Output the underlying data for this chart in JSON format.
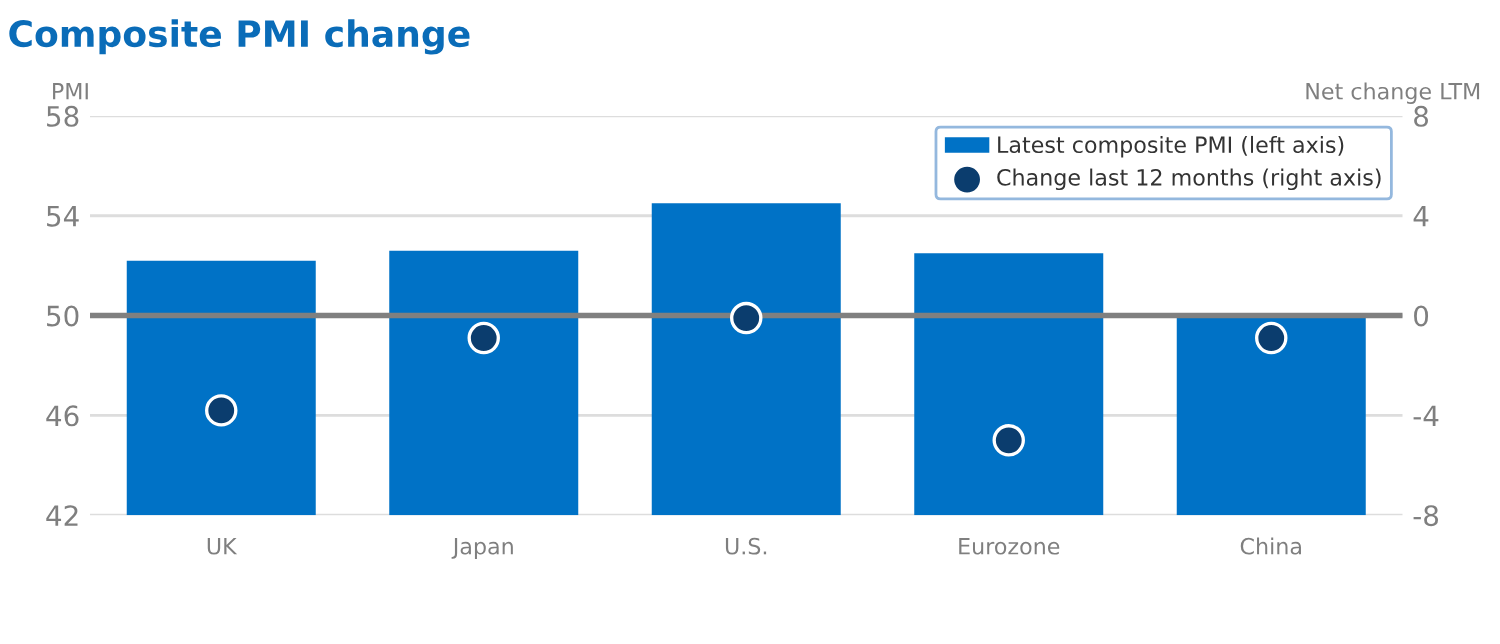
{
  "chart_data": {
    "type": "bar",
    "title": "Composite PMI change",
    "ylabel": "PMI",
    "y2label": "Net change LTM",
    "categories": [
      "UK",
      "Japan",
      "U.S.",
      "Eurozone",
      "China"
    ],
    "series": [
      {
        "name": "Latest composite PMI (left axis)",
        "color": "#0072c6",
        "values": [
          52.2,
          52.6,
          54.5,
          52.5,
          49.9
        ]
      },
      {
        "name": "Change last 12 months (right axis)",
        "type": "scatter",
        "axis": "y2",
        "color": "#0b3d6e",
        "marker": "circle",
        "values": [
          -3.8,
          -0.9,
          -0.1,
          -5.0,
          -0.9
        ]
      }
    ],
    "ylim": [
      42,
      58
    ],
    "yticks": [
      42,
      46,
      50,
      54,
      58
    ],
    "y2lim": [
      -8,
      8
    ],
    "y2ticks": [
      -8,
      -4,
      0,
      4,
      8
    ],
    "ref_lines": [
      {
        "axis": "y",
        "value": 50,
        "color": "#808080"
      }
    ],
    "grid": "y",
    "legend": "top right"
  }
}
